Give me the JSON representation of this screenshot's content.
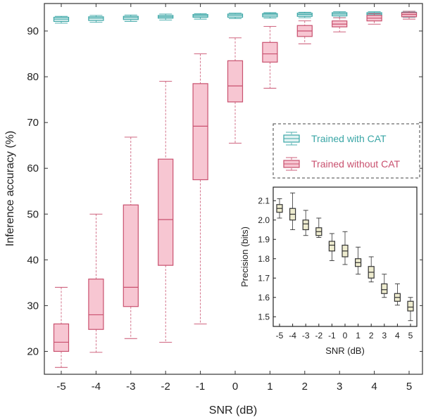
{
  "chart_data": [
    {
      "type": "box",
      "xlabel": "SNR (dB)",
      "ylabel": "Inference accuracy  (%)",
      "categories": [
        "-5",
        "-4",
        "-3",
        "-2",
        "-1",
        "0",
        "1",
        "2",
        "3",
        "4",
        "5"
      ],
      "x_values": [
        -5,
        -4,
        -3,
        -2,
        -1,
        0,
        1,
        2,
        3,
        4,
        5
      ],
      "ylim": [
        15,
        96
      ],
      "yticks": [
        20,
        30,
        40,
        50,
        60,
        70,
        80,
        90
      ],
      "legend_position": "upper-right",
      "series": [
        {
          "name": "Trained with CAT",
          "color": "#3aa6a6",
          "fill": "#e3f3f3",
          "boxes": [
            {
              "x": -5,
              "min": 91.7,
              "q1": 92.1,
              "median": 92.6,
              "q3": 93.0,
              "max": 93.2
            },
            {
              "x": -4,
              "min": 91.9,
              "q1": 92.3,
              "median": 92.8,
              "q3": 93.1,
              "max": 93.4
            },
            {
              "x": -3,
              "min": 92.1,
              "q1": 92.5,
              "median": 92.9,
              "q3": 93.2,
              "max": 93.5
            },
            {
              "x": -2,
              "min": 92.4,
              "q1": 92.8,
              "median": 93.1,
              "q3": 93.4,
              "max": 93.7
            },
            {
              "x": -1,
              "min": 92.6,
              "q1": 93.0,
              "median": 93.3,
              "q3": 93.6,
              "max": 93.8
            },
            {
              "x": 0,
              "min": 92.7,
              "q1": 93.0,
              "median": 93.4,
              "q3": 93.7,
              "max": 93.9
            },
            {
              "x": 1,
              "min": 92.8,
              "q1": 93.1,
              "median": 93.5,
              "q3": 93.8,
              "max": 94.0
            },
            {
              "x": 2,
              "min": 92.9,
              "q1": 93.2,
              "median": 93.6,
              "q3": 93.9,
              "max": 94.1
            },
            {
              "x": 3,
              "min": 92.9,
              "q1": 93.3,
              "median": 93.7,
              "q3": 94.0,
              "max": 94.2
            },
            {
              "x": 4,
              "min": 93.0,
              "q1": 93.4,
              "median": 93.7,
              "q3": 94.0,
              "max": 94.2
            },
            {
              "x": 5,
              "min": 93.0,
              "q1": 93.4,
              "median": 93.8,
              "q3": 94.1,
              "max": 94.3
            }
          ]
        },
        {
          "name": "Trained without CAT",
          "color": "#c9516f",
          "fill": "#f7c6d2",
          "boxes": [
            {
              "x": -5,
              "min": 16.5,
              "q1": 20.0,
              "median": 22.0,
              "q3": 26.0,
              "max": 34.0
            },
            {
              "x": -4,
              "min": 19.8,
              "q1": 24.8,
              "median": 28.0,
              "q3": 35.8,
              "max": 50.0
            },
            {
              "x": -3,
              "min": 22.8,
              "q1": 29.8,
              "median": 34.0,
              "q3": 52.0,
              "max": 66.8
            },
            {
              "x": -2,
              "min": 22.0,
              "q1": 38.8,
              "median": 48.8,
              "q3": 62.0,
              "max": 79.0
            },
            {
              "x": -1,
              "min": 26.0,
              "q1": 57.5,
              "median": 69.2,
              "q3": 78.5,
              "max": 85.0
            },
            {
              "x": 0,
              "min": 65.5,
              "q1": 74.5,
              "median": 78.0,
              "q3": 83.5,
              "max": 88.5
            },
            {
              "x": 1,
              "min": 77.5,
              "q1": 83.2,
              "median": 85.0,
              "q3": 87.5,
              "max": 91.0
            },
            {
              "x": 2,
              "min": 87.2,
              "q1": 88.8,
              "median": 90.0,
              "q3": 91.2,
              "max": 92.2
            },
            {
              "x": 3,
              "min": 89.8,
              "q1": 90.9,
              "median": 91.5,
              "q3": 92.2,
              "max": 92.9
            },
            {
              "x": 4,
              "min": 91.5,
              "q1": 92.2,
              "median": 92.8,
              "q3": 93.4,
              "max": 93.8
            },
            {
              "x": 5,
              "min": 92.6,
              "q1": 93.1,
              "median": 93.6,
              "q3": 94.0,
              "max": 94.3
            }
          ]
        }
      ]
    },
    {
      "type": "box",
      "inset": true,
      "xlabel": "SNR (dB)",
      "ylabel": "Precision (bits)",
      "categories": [
        "-5",
        "-4",
        "-3",
        "-2",
        "-1",
        "0",
        "1",
        "2",
        "3",
        "4",
        "5"
      ],
      "x_values": [
        -5,
        -4,
        -3,
        -2,
        -1,
        0,
        1,
        2,
        3,
        4,
        5
      ],
      "ylim": [
        1.45,
        2.17
      ],
      "yticks": [
        "1.5",
        "1.6",
        "1.7",
        "1.8",
        "1.9",
        "2.0",
        "2.1"
      ],
      "color": "#333333",
      "fill": "#eeeccf",
      "boxes": [
        {
          "x": -5,
          "min": 2.01,
          "q1": 2.04,
          "median": 2.06,
          "q3": 2.08,
          "max": 2.11
        },
        {
          "x": -4,
          "min": 1.95,
          "q1": 2.0,
          "median": 2.03,
          "q3": 2.06,
          "max": 2.14
        },
        {
          "x": -3,
          "min": 1.92,
          "q1": 1.95,
          "median": 1.98,
          "q3": 2.0,
          "max": 2.05
        },
        {
          "x": -2,
          "min": 1.91,
          "q1": 1.92,
          "median": 1.94,
          "q3": 1.96,
          "max": 2.01
        },
        {
          "x": -1,
          "min": 1.79,
          "q1": 1.84,
          "median": 1.87,
          "q3": 1.89,
          "max": 1.93
        },
        {
          "x": 0,
          "min": 1.77,
          "q1": 1.81,
          "median": 1.84,
          "q3": 1.87,
          "max": 1.94
        },
        {
          "x": 1,
          "min": 1.72,
          "q1": 1.76,
          "median": 1.78,
          "q3": 1.8,
          "max": 1.86
        },
        {
          "x": 2,
          "min": 1.68,
          "q1": 1.7,
          "median": 1.73,
          "q3": 1.76,
          "max": 1.81
        },
        {
          "x": 3,
          "min": 1.6,
          "q1": 1.62,
          "median": 1.64,
          "q3": 1.67,
          "max": 1.72
        },
        {
          "x": 4,
          "min": 1.56,
          "q1": 1.58,
          "median": 1.6,
          "q3": 1.62,
          "max": 1.67
        },
        {
          "x": 5,
          "min": 1.48,
          "q1": 1.53,
          "median": 1.55,
          "q3": 1.58,
          "max": 1.6
        }
      ]
    }
  ]
}
